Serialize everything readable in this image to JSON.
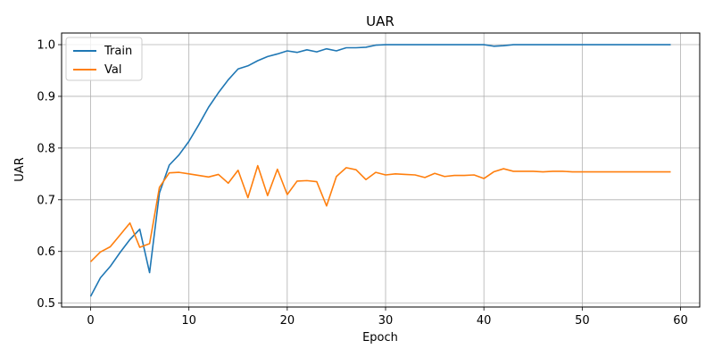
{
  "chart_data": {
    "type": "line",
    "title": "UAR",
    "xlabel": "Epoch",
    "ylabel": "UAR",
    "xlim": [
      -2.95,
      61.95
    ],
    "ylim": [
      0.4925,
      1.0225
    ],
    "xticks": [
      0,
      10,
      20,
      30,
      40,
      50,
      60
    ],
    "yticks": [
      0.5,
      0.6,
      0.7,
      0.8,
      0.9,
      1.0
    ],
    "xtick_labels": [
      "0",
      "10",
      "20",
      "30",
      "40",
      "50",
      "60"
    ],
    "ytick_labels": [
      "0.5",
      "0.6",
      "0.7",
      "0.8",
      "0.9",
      "1.0"
    ],
    "grid": true,
    "legend_position": "upper-left",
    "x": [
      0,
      1,
      2,
      3,
      4,
      5,
      6,
      7,
      8,
      9,
      10,
      11,
      12,
      13,
      14,
      15,
      16,
      17,
      18,
      19,
      20,
      21,
      22,
      23,
      24,
      25,
      26,
      27,
      28,
      29,
      30,
      31,
      32,
      33,
      34,
      35,
      36,
      37,
      38,
      39,
      40,
      41,
      42,
      43,
      44,
      45,
      46,
      47,
      48,
      49,
      50,
      51,
      52,
      53,
      54,
      55,
      56,
      57,
      58,
      59
    ],
    "series": [
      {
        "name": "Train",
        "color": "#1f77b4",
        "values": [
          0.513,
          0.549,
          0.571,
          0.598,
          0.623,
          0.643,
          0.559,
          0.713,
          0.767,
          0.787,
          0.813,
          0.845,
          0.879,
          0.907,
          0.932,
          0.953,
          0.959,
          0.969,
          0.977,
          0.982,
          0.988,
          0.985,
          0.99,
          0.986,
          0.992,
          0.988,
          0.994,
          0.994,
          0.995,
          0.999,
          1.0,
          1.0,
          1.0,
          1.0,
          1.0,
          1.0,
          1.0,
          1.0,
          1.0,
          1.0,
          1.0,
          0.997,
          0.998,
          1.0,
          1.0,
          1.0,
          1.0,
          1.0,
          1.0,
          1.0,
          1.0,
          1.0,
          1.0,
          1.0,
          1.0,
          1.0,
          1.0,
          1.0,
          1.0,
          1.0
        ]
      },
      {
        "name": "Val",
        "color": "#ff7f0e",
        "values": [
          0.58,
          0.599,
          0.609,
          0.632,
          0.655,
          0.608,
          0.615,
          0.724,
          0.752,
          0.753,
          0.75,
          0.747,
          0.744,
          0.749,
          0.732,
          0.757,
          0.704,
          0.766,
          0.708,
          0.759,
          0.71,
          0.736,
          0.737,
          0.735,
          0.688,
          0.745,
          0.762,
          0.758,
          0.739,
          0.753,
          0.748,
          0.75,
          0.749,
          0.748,
          0.743,
          0.751,
          0.745,
          0.747,
          0.747,
          0.748,
          0.741,
          0.754,
          0.76,
          0.755,
          0.755,
          0.755,
          0.754,
          0.755,
          0.755,
          0.754,
          0.754,
          0.754,
          0.754,
          0.754,
          0.754,
          0.754,
          0.754,
          0.754,
          0.754,
          0.754
        ]
      }
    ]
  }
}
